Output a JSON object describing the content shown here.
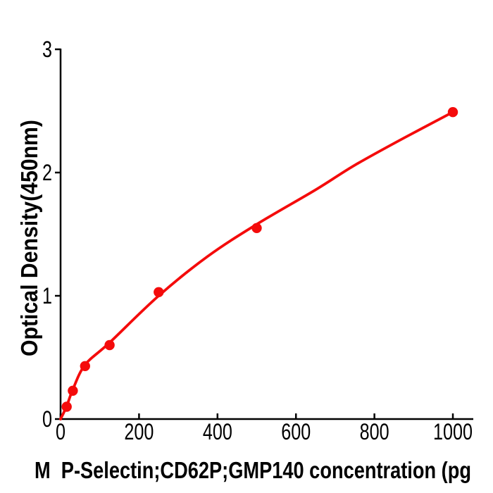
{
  "chart_data": {
    "type": "scatter",
    "title": "",
    "xlabel": "M  P-Selectin;CD62P;GMP140 concentration (pg",
    "ylabel": "Optical Density(450nm)",
    "x": [
      15.625,
      31.25,
      62.5,
      125,
      250,
      500,
      1000
    ],
    "y": [
      0.1,
      0.23,
      0.43,
      0.6,
      1.03,
      1.55,
      2.49
    ],
    "fit_curve": [
      [
        0,
        0
      ],
      [
        15.625,
        0.105
      ],
      [
        31.25,
        0.24
      ],
      [
        62.5,
        0.44
      ],
      [
        125,
        0.62
      ],
      [
        250,
        1.0
      ],
      [
        375,
        1.32
      ],
      [
        500,
        1.58
      ],
      [
        650,
        1.86
      ],
      [
        750,
        2.06
      ],
      [
        875,
        2.28
      ],
      [
        1000,
        2.49
      ]
    ],
    "x_ticks": [
      0,
      200,
      400,
      600,
      800,
      1000
    ],
    "y_ticks": [
      0,
      1,
      2,
      3
    ],
    "xlim": [
      0,
      1052
    ],
    "ylim": [
      0,
      3
    ],
    "marker_color": "#f40b0b",
    "line_color": "#f40b0b",
    "axis_color": "#000000",
    "grid": false,
    "legend": "none"
  }
}
